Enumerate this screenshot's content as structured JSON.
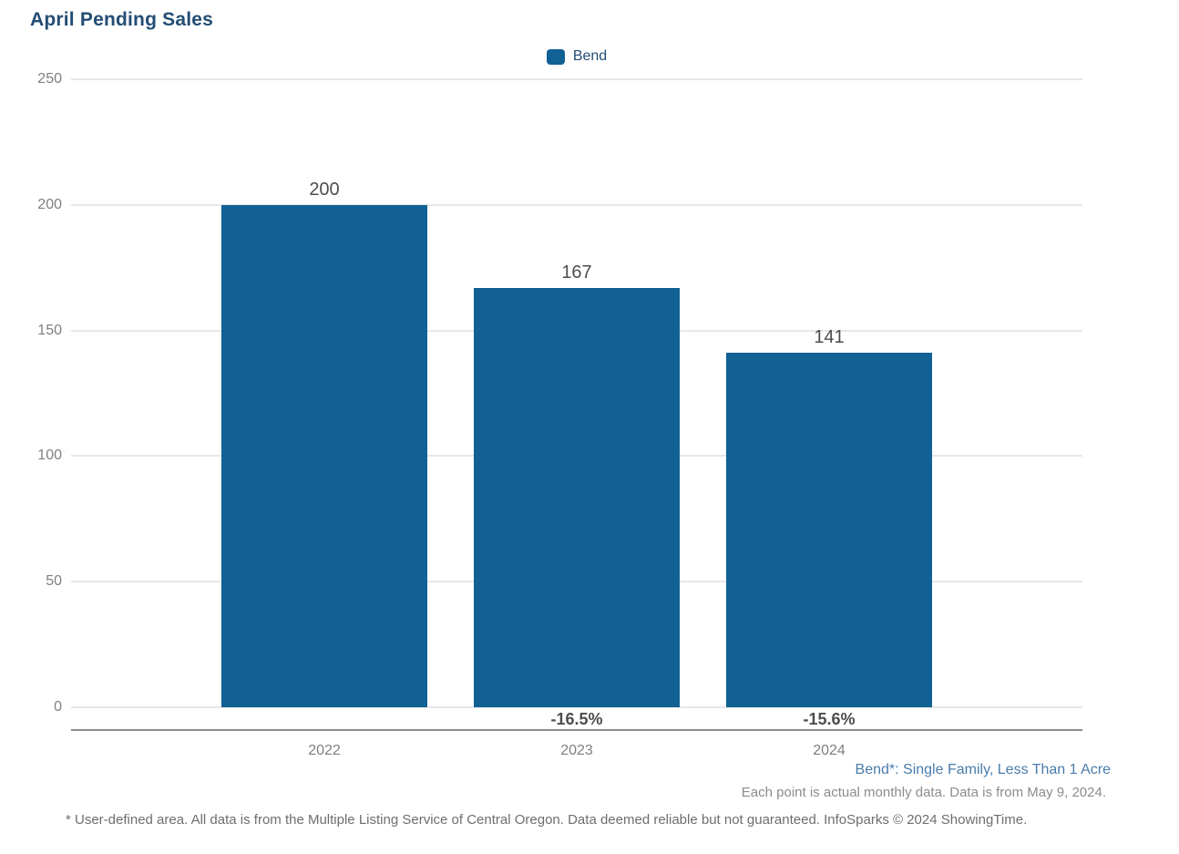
{
  "title": "April Pending Sales",
  "legend": {
    "label": "Bend"
  },
  "chart_data": {
    "type": "bar",
    "title": "April Pending Sales",
    "categories": [
      "2022",
      "2023",
      "2024"
    ],
    "series": [
      {
        "name": "Bend",
        "values": [
          200,
          167,
          141
        ]
      }
    ],
    "bar_labels": [
      "200",
      "167",
      "141"
    ],
    "pct_change_labels": [
      null,
      "-16.5%",
      "-15.6%"
    ],
    "ylim": [
      0,
      250
    ],
    "yticks": [
      0,
      50,
      100,
      150,
      200,
      250
    ],
    "grid": "horizontal",
    "legend_position": "top-center",
    "bar_color": "#116194"
  },
  "footnotes": {
    "series_definition": "Bend*: Single Family, Less Than 1 Acre",
    "data_note": "Each point is actual monthly data. Data is from May 9, 2024.",
    "disclaimer": "* User-defined area. All data is from the Multiple Listing Service of Central Oregon. Data deemed reliable but not guaranteed. InfoSparks © 2024 ShowingTime."
  },
  "colors": {
    "bar": "#116194",
    "title": "#234D74",
    "legend_text": "#234D74",
    "tick_labels": "#7F7F7F",
    "value_labels": "#4D4D4D",
    "pct_labels": "#4D4D4D",
    "gridline": "#E7E7E7",
    "axis_line": "#8C8C8C",
    "footnote_blue": "#4A7CAB",
    "footnote_gray": "#8C8C8C",
    "disclaimer_gray": "#6E6E6E"
  }
}
